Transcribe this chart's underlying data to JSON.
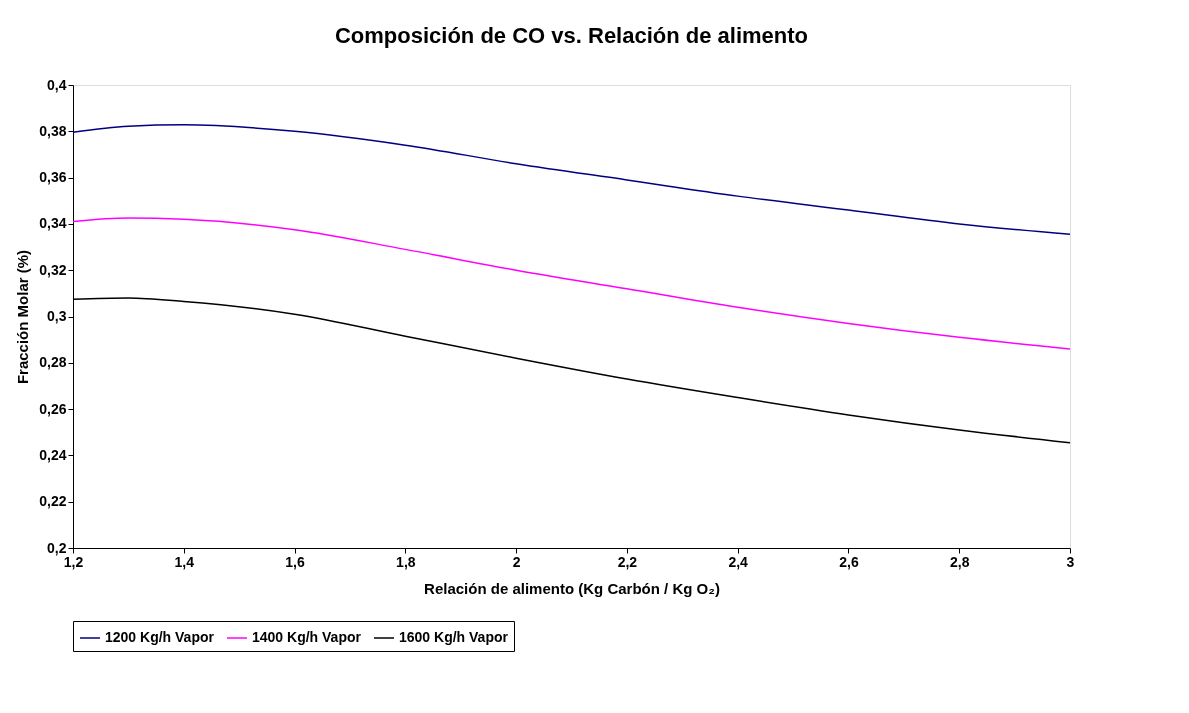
{
  "chart_data": {
    "type": "line",
    "title": "Composición de CO vs. Relación de alimento",
    "xlabel": "Relación de alimento (Kg Carbón / Kg O₂)",
    "ylabel": "Fracción Molar (%)",
    "x": [
      1.2,
      1.3,
      1.4,
      1.6,
      1.8,
      2.0,
      2.2,
      2.4,
      2.6,
      2.8,
      3.0
    ],
    "series": [
      {
        "name": "1200 Kg/h Vapor",
        "color": "#000080",
        "values": [
          0.3796,
          0.3822,
          0.3828,
          0.38,
          0.374,
          0.366,
          0.359,
          0.352,
          0.346,
          0.34,
          0.3355
        ]
      },
      {
        "name": "1400 Kg/h Vapor",
        "color": "#ff00ff",
        "values": [
          0.341,
          0.3425,
          0.342,
          0.3375,
          0.329,
          0.32,
          0.312,
          0.304,
          0.297,
          0.291,
          0.286
        ]
      },
      {
        "name": "1600 Kg/h Vapor",
        "color": "#000000",
        "values": [
          0.3075,
          0.308,
          0.3065,
          0.301,
          0.2915,
          0.282,
          0.273,
          0.265,
          0.2575,
          0.251,
          0.2455
        ]
      }
    ],
    "xlim": [
      1.2,
      3.0
    ],
    "xticks": [
      {
        "value": 1.2,
        "label": "1,2"
      },
      {
        "value": 1.4,
        "label": "1,4"
      },
      {
        "value": 1.6,
        "label": "1,6"
      },
      {
        "value": 1.8,
        "label": "1,8"
      },
      {
        "value": 2,
        "label": "2"
      },
      {
        "value": 2.2,
        "label": "2,2"
      },
      {
        "value": 2.4,
        "label": "2,4"
      },
      {
        "value": 2.6,
        "label": "2,6"
      },
      {
        "value": 2.8,
        "label": "2,8"
      },
      {
        "value": 3,
        "label": "3"
      }
    ],
    "ylim": [
      0.2,
      0.4
    ],
    "yticks": [
      {
        "value": 0.2,
        "label": "0,2"
      },
      {
        "value": 0.22,
        "label": "0,22"
      },
      {
        "value": 0.24,
        "label": "0,24"
      },
      {
        "value": 0.26,
        "label": "0,26"
      },
      {
        "value": 0.28,
        "label": "0,28"
      },
      {
        "value": 0.3,
        "label": "0,3"
      },
      {
        "value": 0.32,
        "label": "0,32"
      },
      {
        "value": 0.34,
        "label": "0,34"
      },
      {
        "value": 0.36,
        "label": "0,36"
      },
      {
        "value": 0.38,
        "label": "0,38"
      },
      {
        "value": 0.4,
        "label": "0,4"
      }
    ],
    "grid": false,
    "legend": "bottom",
    "marker": "none",
    "line_style": "solid"
  }
}
